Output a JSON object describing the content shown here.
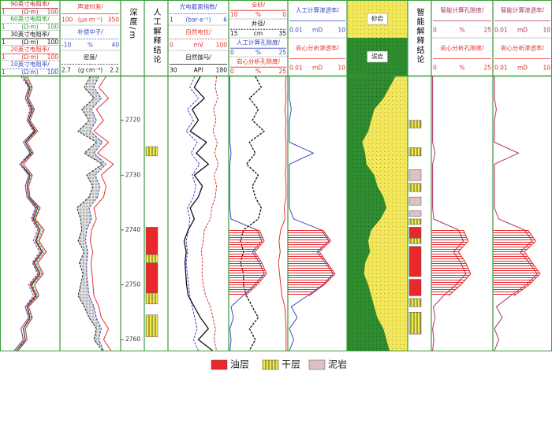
{
  "chart_data": {
    "type": "well-log",
    "ylim": [
      2712,
      2762
    ],
    "yticks": [
      2720,
      2730,
      2740,
      2750,
      2760
    ],
    "depths": [
      2712,
      2714,
      2716,
      2718,
      2720,
      2722,
      2724,
      2726,
      2728,
      2730,
      2732,
      2734,
      2736,
      2738,
      2740,
      2742,
      2744,
      2746,
      2748,
      2750,
      2752,
      2754,
      2756,
      2758,
      2760,
      2762
    ],
    "legend": [
      {
        "name": "油层",
        "color": "#e8282b",
        "pattern": "solid"
      },
      {
        "name": "干层",
        "color": "#f2ea4a",
        "pattern": "lines"
      },
      {
        "name": "泥岩",
        "color": "#dcc2c2",
        "pattern": "solid"
      }
    ],
    "tracks": [
      {
        "kind": "curves",
        "curves": [
          {
            "name": "90英寸电阻率/",
            "color": "#b0303a",
            "lim": [
              1,
              100
            ],
            "unit": "(Ω·m)",
            "log": true,
            "dash": false,
            "values": [
              8,
              12,
              9,
              14,
              10,
              18,
              8,
              13,
              6,
              12,
              9,
              10,
              22,
              15,
              30,
              20,
              35,
              18,
              28,
              14,
              20,
              9,
              12,
              7,
              8,
              4
            ]
          },
          {
            "name": "60英寸电阻率/",
            "color": "#2e9a2e",
            "lim": [
              1,
              100
            ],
            "unit": "(Ω·m)",
            "log": true,
            "dash": true,
            "values": [
              7,
              11,
              8,
              13,
              9,
              16,
              7,
              12,
              5,
              11,
              8,
              9,
              20,
              14,
              26,
              18,
              30,
              16,
              25,
              12,
              18,
              8,
              11,
              6,
              7,
              4
            ]
          },
          {
            "name": "30英寸电阻率/",
            "color": "#222222",
            "lim": [
              1,
              100
            ],
            "unit": "(Ω·m)",
            "log": true,
            "dash": false,
            "values": [
              6,
              10,
              8,
              12,
              9,
              15,
              7,
              11,
              5,
              10,
              8,
              9,
              18,
              13,
              22,
              16,
              26,
              14,
              22,
              11,
              16,
              8,
              10,
              6,
              7,
              3.5
            ]
          },
          {
            "name": "20英寸电阻率/",
            "color": "#e0322a",
            "lim": [
              1,
              100
            ],
            "unit": "(Ω·m)",
            "log": true,
            "dash": false,
            "values": [
              6,
              9,
              7,
              11,
              8,
              14,
              6,
              10,
              5,
              9,
              7,
              8,
              16,
              12,
              20,
              15,
              24,
              13,
              20,
              10,
              15,
              7,
              9,
              5,
              6,
              3
            ]
          },
          {
            "name": "10英寸电阻率/",
            "color": "#3b4cc0",
            "lim": [
              1,
              100
            ],
            "unit": "(Ω·m)",
            "log": true,
            "dash": true,
            "values": [
              5,
              9,
              7,
              10,
              8,
              13,
              6,
              10,
              4.5,
              9,
              7,
              8,
              15,
              11,
              18,
              13,
              21,
              12,
              18,
              9,
              13,
              7,
              9,
              5,
              6,
              3
            ]
          }
        ]
      },
      {
        "kind": "curves",
        "fill_between": [
          1,
          2
        ],
        "curves": [
          {
            "name": "声波时差/",
            "color": "#e0322a",
            "lim": [
              100,
              350
            ],
            "unit": "(μs·m⁻¹)",
            "log": false,
            "dash": false,
            "values": [
              290,
              260,
              300,
              250,
              280,
              240,
              300,
              255,
              320,
              270,
              290,
              280,
              240,
              250,
              230,
              225,
              235,
              228,
              232,
              236,
              240,
              260,
              270,
              300,
              280,
              310
            ]
          },
          {
            "name": "补偿中子/",
            "color": "#3b4cc0",
            "lim": [
              -10,
              40
            ],
            "unit": "%",
            "log": false,
            "dash": true,
            "values": [
              22,
              18,
              24,
              16,
              20,
              15,
              25,
              18,
              28,
              19,
              23,
              21,
              14,
              16,
              12,
              11,
              13,
              12,
              12,
              13,
              14,
              18,
              20,
              24,
              22,
              26
            ]
          },
          {
            "name": "密度/",
            "color": "#222222",
            "lim": [
              2.7,
              2.2
            ],
            "unit": "(g·cm⁻³)",
            "log": false,
            "dash": true,
            "values": [
              2.45,
              2.5,
              2.42,
              2.52,
              2.46,
              2.55,
              2.4,
              2.5,
              2.35,
              2.48,
              2.43,
              2.46,
              2.56,
              2.53,
              2.52,
              2.55,
              2.5,
              2.54,
              2.51,
              2.53,
              2.55,
              2.5,
              2.46,
              2.4,
              2.42,
              2.35
            ]
          }
        ]
      },
      {
        "kind": "depth",
        "title": "深度/m"
      },
      {
        "kind": "interp",
        "title": "人工解释结论",
        "layers": [
          [
            [
              2739.5,
              2744.5
            ],
            [
              2746,
              2751.5
            ]
          ],
          [
            [
              2724.8,
              2726.5
            ],
            [
              2744.5,
              2746
            ],
            [
              2751.5,
              2753.5
            ],
            [
              2755.5,
              2759.5
            ]
          ],
          []
        ]
      },
      {
        "kind": "curves",
        "curves": [
          {
            "name": "光电截面指数/",
            "color": "#3b4cc0",
            "lim": [
              1,
              6
            ],
            "unit": "(bar·e⁻¹)",
            "log": false,
            "dash": true,
            "values": [
              3.2,
              2.8,
              3.5,
              2.6,
              3.1,
              2.5,
              3.4,
              2.9,
              3.6,
              3.0,
              3.3,
              3.1,
              2.6,
              2.8,
              2.7,
              2.5,
              2.6,
              2.5,
              2.6,
              2.7,
              2.8,
              3.0,
              3.2,
              3.4,
              3.1,
              3.5
            ]
          },
          {
            "name": "自然电位/",
            "color": "#e0322a",
            "lim": [
              0,
              100
            ],
            "unit": "mV",
            "log": false,
            "dash": true,
            "values": [
              80,
              78,
              82,
              75,
              79,
              74,
              81,
              77,
              83,
              76,
              80,
              78,
              72,
              70,
              60,
              58,
              55,
              57,
              56,
              58,
              62,
              70,
              74,
              78,
              76,
              80
            ]
          },
          {
            "name": "自然伽马/",
            "color": "#111111",
            "lim": [
              30,
              180
            ],
            "unit": "API",
            "log": false,
            "dash": false,
            "values": [
              110,
              95,
              120,
              90,
              105,
              85,
              125,
              100,
              130,
              95,
              115,
              105,
              85,
              95,
              80,
              70,
              75,
              72,
              74,
              76,
              80,
              95,
              110,
              130,
              105,
              140
            ]
          }
        ]
      },
      {
        "kind": "curves",
        "curves": [
          {
            "name": "全砂/",
            "color": "#e0322a",
            "lim": [
              10,
              0
            ],
            "unit": "%",
            "log": false,
            "dash": false,
            "values": [
              0.3,
              0.4,
              0.3,
              0.5,
              0.3,
              0.4,
              0.3,
              0.3,
              0.3,
              0.4,
              0.3,
              0.3,
              0.6,
              0.5,
              1.2,
              1.5,
              1.3,
              1.6,
              1.4,
              1.2,
              1.0,
              0.5,
              0.4,
              0.3,
              0.3,
              0.3
            ]
          },
          {
            "name": "井径/",
            "color": "#111111",
            "lim": [
              15,
              35
            ],
            "unit": "cm",
            "log": false,
            "dash": true,
            "values": [
              24,
              26,
              22,
              25,
              23,
              27,
              22,
              24,
              21,
              25,
              23,
              24,
              26,
              25,
              20,
              19,
              20,
              19,
              20,
              20,
              21,
              23,
              25,
              22,
              24,
              22
            ]
          },
          {
            "name": "人工计算孔隙度/",
            "color": "#3b4cc0",
            "lim": [
              0,
              25
            ],
            "unit": "%",
            "log": false,
            "dash": false,
            "values": [
              0.5,
              0.5,
              0.5,
              0.5,
              0.5,
              0.5,
              0.5,
              1,
              0.5,
              0.5,
              0.5,
              0.5,
              0.5,
              1,
              12,
              14,
              10,
              13,
              15,
              11,
              6,
              1,
              2,
              0.5,
              1,
              0.5
            ]
          },
          {
            "name": "岩心分析孔隙度/",
            "color": "#e0322a",
            "lim": [
              0,
              25
            ],
            "unit": "%",
            "log": false,
            "dash": false,
            "fill": "hatch",
            "values": [
              null,
              null,
              null,
              null,
              null,
              null,
              null,
              null,
              null,
              null,
              null,
              null,
              null,
              null,
              13,
              15,
              11,
              14,
              16,
              12,
              7,
              null,
              null,
              null,
              null,
              null
            ]
          }
        ]
      },
      {
        "kind": "curves",
        "curves": [
          {
            "name": "人工计算渗透率/",
            "color": "#3b4cc0",
            "lim": [
              0.01,
              10
            ],
            "unit": "mD",
            "log": true,
            "dash": false,
            "values": [
              0.012,
              0.012,
              0.012,
              0.015,
              0.012,
              0.012,
              0.012,
              0.2,
              0.012,
              0.012,
              0.012,
              0.012,
              0.012,
              0.02,
              0.5,
              1.2,
              0.3,
              0.8,
              2,
              0.6,
              0.1,
              0.015,
              0.03,
              0.012,
              0.02,
              0.012
            ]
          },
          {
            "name": "岩心分析渗透率/",
            "color": "#e0322a",
            "lim": [
              0.01,
              10
            ],
            "unit": "mD",
            "log": true,
            "dash": false,
            "fill": "hatch",
            "values": [
              null,
              null,
              null,
              null,
              null,
              null,
              null,
              null,
              null,
              null,
              null,
              null,
              null,
              null,
              0.6,
              1.5,
              0.4,
              1.0,
              2.5,
              0.7,
              0.12,
              null,
              null,
              null,
              null,
              null
            ]
          }
        ]
      },
      {
        "kind": "lithology",
        "labels": [
          "砂岩",
          "泥岩"
        ],
        "sand": [
          20,
          30,
          40,
          55,
          60,
          65,
          75,
          70,
          68,
          55,
          50,
          40,
          35,
          45,
          60,
          65,
          62,
          70,
          72,
          65,
          60,
          55,
          50,
          40,
          35,
          30
        ]
      },
      {
        "kind": "interp",
        "title": "智能解释结论",
        "layers": [
          [
            [
              2739.5,
              2741.5
            ],
            [
              2743,
              2748.5
            ],
            [
              2749,
              2752
            ]
          ],
          [
            [
              2720,
              2721.4
            ],
            [
              2725,
              2726.5
            ],
            [
              2731.5,
              2733
            ],
            [
              2738,
              2739
            ],
            [
              2741.5,
              2742.5
            ],
            [
              2752.5,
              2754
            ],
            [
              2755,
              2759
            ]
          ],
          [
            [
              2729,
              2731
            ],
            [
              2734,
              2735.5
            ],
            [
              2736.5,
              2737.5
            ]
          ]
        ]
      },
      {
        "kind": "curves",
        "curves": [
          {
            "name": "智能计算孔隙度/",
            "color": "#b0306a",
            "lim": [
              0,
              25
            ],
            "unit": "%",
            "log": false,
            "dash": false,
            "values": [
              0.5,
              0.5,
              0.5,
              0.5,
              0.5,
              0.5,
              0.5,
              1.5,
              0.5,
              0.5,
              0.5,
              0.5,
              0.5,
              1,
              11,
              13,
              9,
              12,
              14,
              10,
              5,
              0.8,
              1.5,
              0.5,
              1,
              0.5
            ]
          },
          {
            "name": "岩心分析孔隙度/",
            "color": "#e0322a",
            "lim": [
              0,
              25
            ],
            "unit": "%",
            "log": false,
            "dash": false,
            "fill": "hatch",
            "values": [
              null,
              null,
              null,
              null,
              null,
              null,
              null,
              null,
              null,
              null,
              null,
              null,
              null,
              null,
              13,
              15,
              11,
              14,
              16,
              12,
              7,
              null,
              null,
              null,
              null,
              null
            ]
          }
        ]
      },
      {
        "kind": "curves",
        "curves": [
          {
            "name": "智能计算渗透率/",
            "color": "#b0306a",
            "lim": [
              0.01,
              10
            ],
            "unit": "mD",
            "log": true,
            "dash": false,
            "values": [
              0.012,
              0.012,
              0.012,
              0.015,
              0.012,
              0.012,
              0.012,
              0.2,
              0.012,
              0.012,
              0.012,
              0.012,
              0.012,
              0.02,
              0.4,
              1.0,
              0.25,
              0.7,
              1.8,
              0.5,
              0.08,
              0.015,
              0.03,
              0.012,
              0.02,
              0.012
            ]
          },
          {
            "name": "岩心分析渗透率/",
            "color": "#e0322a",
            "lim": [
              0.01,
              10
            ],
            "unit": "mD",
            "log": true,
            "dash": false,
            "fill": "hatch",
            "values": [
              null,
              null,
              null,
              null,
              null,
              null,
              null,
              null,
              null,
              null,
              null,
              null,
              null,
              null,
              0.6,
              1.5,
              0.4,
              1.0,
              2.5,
              0.7,
              0.12,
              null,
              null,
              null,
              null,
              null
            ]
          }
        ]
      }
    ]
  }
}
